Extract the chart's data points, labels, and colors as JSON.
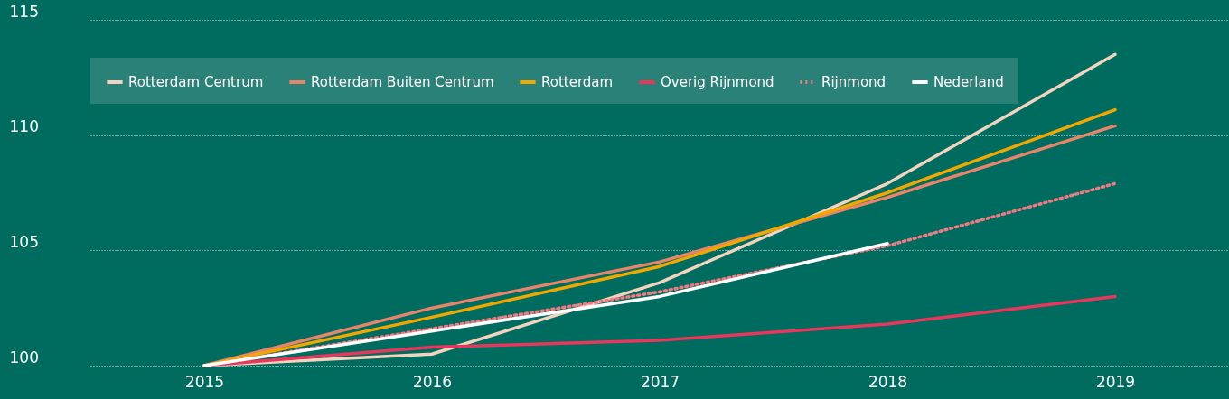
{
  "chart_data": {
    "type": "line",
    "categories": [
      "2015",
      "2016",
      "2017",
      "2018",
      "2019"
    ],
    "series": [
      {
        "name": "Rotterdam Centrum",
        "color": "#f2d3bd",
        "values": [
          100,
          100.5,
          103.6,
          107.9,
          113.5
        ]
      },
      {
        "name": "Rotterdam Buiten Centrum",
        "color": "#e8846a",
        "values": [
          100,
          102.5,
          104.5,
          107.3,
          110.4
        ]
      },
      {
        "name": "Rotterdam",
        "color": "#f0a800",
        "values": [
          100,
          102.1,
          104.3,
          107.5,
          111.1
        ]
      },
      {
        "name": "Overig Rijnmond",
        "color": "#e8375a",
        "values": [
          100,
          100.8,
          101.1,
          101.8,
          103.0
        ]
      },
      {
        "name": "Rijnmond",
        "color": "#f07a80",
        "line_style": "dotted",
        "values": [
          100,
          101.6,
          103.2,
          105.2,
          107.9
        ]
      },
      {
        "name": "Nederland",
        "color": "#ffffff",
        "values": [
          100,
          101.5,
          103.0,
          105.3,
          null
        ]
      }
    ],
    "ylim": [
      100,
      115
    ],
    "yticks": [
      100,
      105,
      110,
      115
    ],
    "grid": "y",
    "legend": "top left",
    "line_style": "solid"
  }
}
